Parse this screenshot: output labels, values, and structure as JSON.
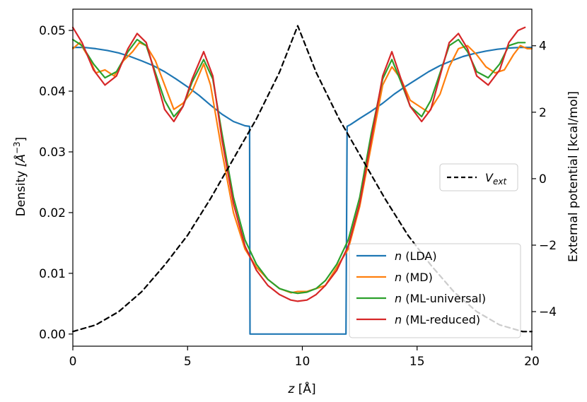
{
  "chart_data": {
    "type": "line",
    "title": "",
    "x_axis": {
      "label_italic": "z",
      "label_rest": " [Å]",
      "range": [
        0,
        20
      ],
      "ticks": [
        "0",
        "5",
        "10",
        "15",
        "20"
      ]
    },
    "y_left": {
      "label": "Density",
      "label_unit": "[Å",
      "label_exp": "−3",
      "label_close": "]",
      "range": [
        -0.002,
        0.0535
      ],
      "ticks": [
        "0.00",
        "0.01",
        "0.02",
        "0.03",
        "0.04",
        "0.05"
      ]
    },
    "y_right": {
      "label": "External potential [kcal/mol]",
      "range": [
        -5.04,
        5.1
      ],
      "ticks": [
        "−4",
        "−2",
        "0",
        "2",
        "4"
      ]
    },
    "grid": false,
    "legend_main": {
      "placement": "lower-right",
      "entries": [
        {
          "name": "n",
          "suffix": " (LDA)",
          "color": "#1f77b4"
        },
        {
          "name": "n",
          "suffix": " (MD)",
          "color": "#ff7f0e"
        },
        {
          "name": "n",
          "suffix": " (ML-universal)",
          "color": "#2ca02c"
        },
        {
          "name": "n",
          "suffix": " (ML-reduced)",
          "color": "#d62728"
        }
      ]
    },
    "legend_vext": {
      "placement": "center-right",
      "name": "V",
      "sub": "ext",
      "color": "#000000"
    },
    "series": [
      {
        "name": "n (LDA)",
        "axis": "left",
        "color": "#1f77b4",
        "x": [
          0,
          0.5,
          1,
          1.5,
          2,
          2.5,
          3,
          3.5,
          4,
          4.5,
          5,
          5.5,
          6,
          6.5,
          7,
          7.5,
          7.7,
          7.72,
          9,
          10,
          11,
          11.9,
          11.95,
          12.1,
          12.5,
          13,
          13.5,
          14,
          14.5,
          15,
          15.5,
          16,
          16.5,
          17,
          17.5,
          18,
          18.5,
          19,
          19.5,
          20
        ],
        "y": [
          0.0472,
          0.0472,
          0.047,
          0.0467,
          0.0463,
          0.0457,
          0.045,
          0.0442,
          0.0432,
          0.042,
          0.0407,
          0.0393,
          0.0377,
          0.0362,
          0.035,
          0.0343,
          0.0342,
          0.0,
          0.0,
          0.0,
          0.0,
          0.0,
          0.0342,
          0.0345,
          0.0355,
          0.0367,
          0.038,
          0.0395,
          0.0408,
          0.042,
          0.0432,
          0.0442,
          0.045,
          0.0457,
          0.0462,
          0.0466,
          0.0469,
          0.0471,
          0.0472,
          0.0472
        ]
      },
      {
        "name": "n (MD)",
        "axis": "left",
        "color": "#ff7f0e",
        "x": [
          0,
          0.3,
          0.7,
          1,
          1.4,
          1.8,
          2.2,
          2.6,
          2.9,
          3.2,
          3.6,
          4,
          4.4,
          4.8,
          5.2,
          5.7,
          6,
          6.5,
          7,
          7.5,
          8,
          8.5,
          9,
          9.5,
          9.8,
          10.2,
          10.6,
          11,
          11.5,
          12,
          12.5,
          13,
          13.5,
          13.9,
          14.3,
          14.7,
          15.1,
          15.5,
          16,
          16.4,
          16.8,
          17.2,
          17.6,
          18,
          18.4,
          18.8,
          19.2,
          19.5,
          19.8,
          20
        ],
        "y": [
          0.047,
          0.048,
          0.0455,
          0.043,
          0.0435,
          0.0425,
          0.045,
          0.0465,
          0.048,
          0.0475,
          0.045,
          0.041,
          0.037,
          0.038,
          0.04,
          0.0445,
          0.041,
          0.03,
          0.02,
          0.014,
          0.011,
          0.009,
          0.0075,
          0.0068,
          0.007,
          0.007,
          0.0075,
          0.008,
          0.011,
          0.014,
          0.021,
          0.031,
          0.041,
          0.044,
          0.042,
          0.0385,
          0.0375,
          0.0365,
          0.0395,
          0.044,
          0.047,
          0.0475,
          0.046,
          0.044,
          0.043,
          0.0435,
          0.046,
          0.0475,
          0.047,
          0.047
        ]
      },
      {
        "name": "n (ML-universal)",
        "axis": "left",
        "color": "#2ca02c",
        "x": [
          0,
          0.4,
          0.9,
          1.4,
          1.9,
          2.4,
          2.8,
          3.2,
          3.6,
          4,
          4.4,
          4.8,
          5.2,
          5.7,
          6.1,
          6.5,
          7,
          7.5,
          8,
          8.5,
          9,
          9.5,
          9.8,
          10.2,
          10.6,
          11,
          11.5,
          12,
          12.5,
          13,
          13.5,
          13.9,
          14.3,
          14.7,
          15.2,
          15.6,
          16,
          16.4,
          16.8,
          17.2,
          17.6,
          18.1,
          18.6,
          19,
          19.4,
          19.7
        ],
        "y": [
          0.0485,
          0.0475,
          0.0445,
          0.0422,
          0.0432,
          0.0465,
          0.0485,
          0.0475,
          0.043,
          0.0385,
          0.0358,
          0.0375,
          0.0415,
          0.0452,
          0.042,
          0.033,
          0.0225,
          0.0155,
          0.0115,
          0.009,
          0.0075,
          0.0069,
          0.0067,
          0.0069,
          0.0075,
          0.0088,
          0.0115,
          0.0155,
          0.0225,
          0.033,
          0.042,
          0.0452,
          0.0415,
          0.0375,
          0.0358,
          0.0385,
          0.043,
          0.0475,
          0.0485,
          0.0465,
          0.0432,
          0.0422,
          0.0445,
          0.0475,
          0.048,
          0.048
        ]
      },
      {
        "name": "n (ML-reduced)",
        "axis": "left",
        "color": "#d62728",
        "x": [
          0,
          0.4,
          0.9,
          1.4,
          1.9,
          2.4,
          2.8,
          3.2,
          3.6,
          4,
          4.4,
          4.8,
          5.2,
          5.7,
          6.1,
          6.5,
          7,
          7.5,
          8,
          8.5,
          9,
          9.5,
          9.8,
          10.2,
          10.6,
          11,
          11.5,
          12,
          12.5,
          13,
          13.5,
          13.9,
          14.3,
          14.7,
          15.2,
          15.6,
          16,
          16.4,
          16.8,
          17.2,
          17.6,
          18.1,
          18.6,
          19,
          19.4,
          19.7
        ],
        "y": [
          0.0505,
          0.048,
          0.0435,
          0.041,
          0.0425,
          0.047,
          0.0495,
          0.048,
          0.0425,
          0.037,
          0.035,
          0.0375,
          0.042,
          0.0465,
          0.0425,
          0.032,
          0.0215,
          0.0145,
          0.0105,
          0.008,
          0.0065,
          0.0056,
          0.0054,
          0.0056,
          0.0065,
          0.008,
          0.0105,
          0.0145,
          0.0215,
          0.032,
          0.0425,
          0.0465,
          0.042,
          0.0375,
          0.035,
          0.037,
          0.0425,
          0.048,
          0.0495,
          0.047,
          0.0425,
          0.041,
          0.0435,
          0.048,
          0.05,
          0.0505
        ]
      },
      {
        "name": "V_ext",
        "axis": "right",
        "color": "#000000",
        "dashed": true,
        "x": [
          0,
          1,
          2,
          3,
          4,
          5,
          6,
          7,
          8,
          9,
          9.8,
          10.6,
          11.6,
          12.6,
          13.6,
          14.6,
          15.6,
          16.6,
          17.6,
          18.6,
          19.6,
          20
        ],
        "y": [
          -4.6,
          -4.4,
          -4.0,
          -3.4,
          -2.6,
          -1.7,
          -0.6,
          0.6,
          1.8,
          3.2,
          4.6,
          3.2,
          1.8,
          0.6,
          -0.6,
          -1.7,
          -2.6,
          -3.4,
          -4.0,
          -4.4,
          -4.6,
          -4.6
        ]
      }
    ]
  }
}
